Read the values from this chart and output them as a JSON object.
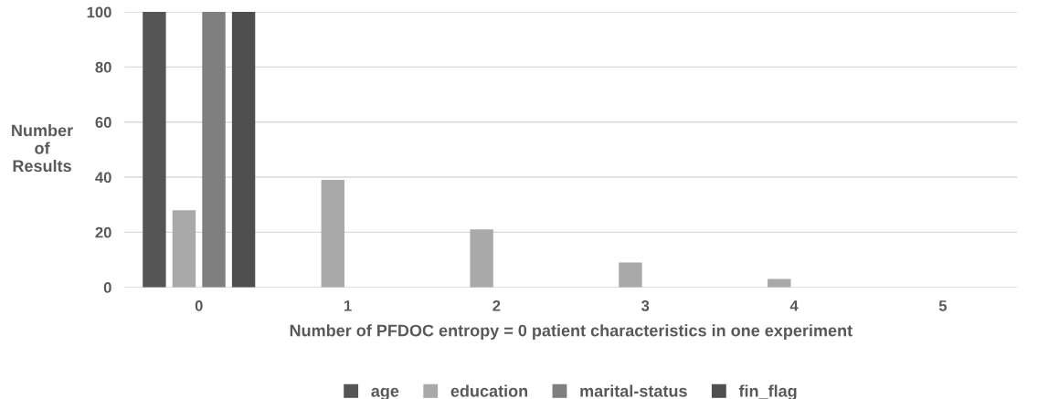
{
  "chart_data": {
    "type": "bar",
    "xlabel": "Number of PFDOC entropy = 0 patient characteristics in one experiment",
    "ylabel": "Number\nof\nResults",
    "categories": [
      "0",
      "1",
      "2",
      "3",
      "4",
      "5"
    ],
    "series": [
      {
        "name": "age",
        "color": "#555555",
        "values": [
          100,
          0,
          0,
          0,
          0,
          0
        ]
      },
      {
        "name": "education",
        "color": "#a9a9a9",
        "values": [
          28,
          39,
          21,
          9,
          3,
          0
        ]
      },
      {
        "name": "marital-status",
        "color": "#7f7f7f",
        "values": [
          100,
          0,
          0,
          0,
          0,
          0
        ]
      },
      {
        "name": "fin_flag",
        "color": "#4f4f4f",
        "values": [
          100,
          0,
          0,
          0,
          0,
          0
        ]
      }
    ],
    "ylim": [
      0,
      100
    ],
    "yticks": [
      0,
      20,
      40,
      60,
      80,
      100
    ],
    "grid": "y",
    "legend": "bottom"
  }
}
